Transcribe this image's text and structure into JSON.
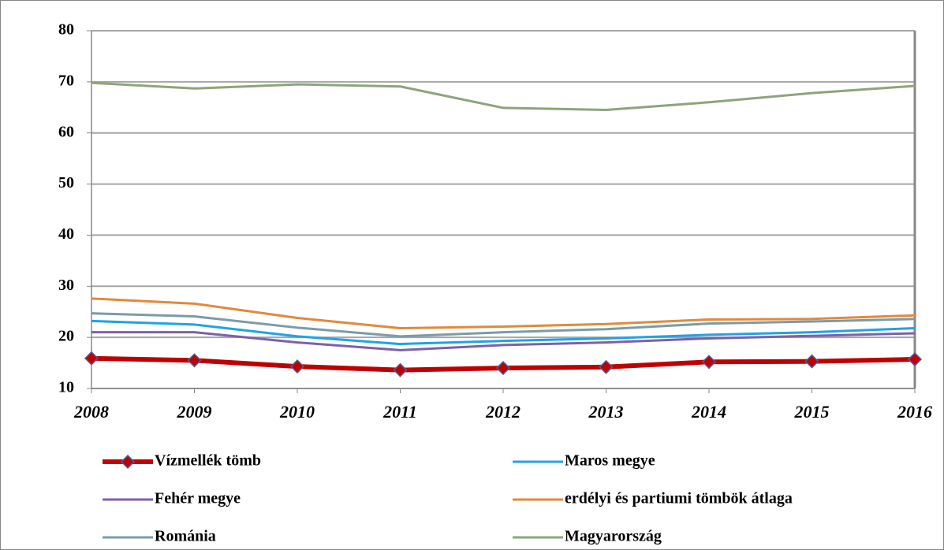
{
  "chart_data": {
    "type": "line",
    "categories": [
      "2008",
      "2009",
      "2010",
      "2011",
      "2012",
      "2013",
      "2014",
      "2015",
      "2016"
    ],
    "ylim": [
      10,
      80
    ],
    "yticks": [
      10,
      20,
      30,
      40,
      50,
      60,
      70,
      80
    ],
    "grid": true,
    "series": [
      {
        "name": "Vízmellék tömb",
        "color": "#c00000",
        "marker": "diamond",
        "values": [
          15.9,
          15.5,
          14.3,
          13.6,
          14.0,
          14.2,
          15.2,
          15.3,
          15.7
        ]
      },
      {
        "name": "Maros megye",
        "color": "#1fa3e6",
        "values": [
          23.2,
          22.5,
          20.2,
          18.7,
          19.3,
          19.8,
          20.5,
          21.0,
          21.8
        ]
      },
      {
        "name": "Fehér megye",
        "color": "#7f5fa8",
        "values": [
          21.0,
          21.0,
          19.0,
          17.5,
          18.5,
          19.0,
          19.8,
          20.3,
          20.8
        ]
      },
      {
        "name": "erdélyi és partiumi tömbök átlaga",
        "color": "#e08a3c",
        "values": [
          27.6,
          26.6,
          23.8,
          21.8,
          22.1,
          22.6,
          23.5,
          23.6,
          24.3
        ]
      },
      {
        "name": "Románia",
        "color": "#7b9ba8",
        "values": [
          24.7,
          24.1,
          21.9,
          20.2,
          21.0,
          21.6,
          22.7,
          23.1,
          23.6
        ]
      },
      {
        "name": "Magyarország",
        "color": "#8ea47c",
        "values": [
          69.8,
          68.7,
          69.5,
          69.1,
          64.9,
          64.5,
          66.0,
          67.8,
          69.2
        ]
      }
    ]
  }
}
